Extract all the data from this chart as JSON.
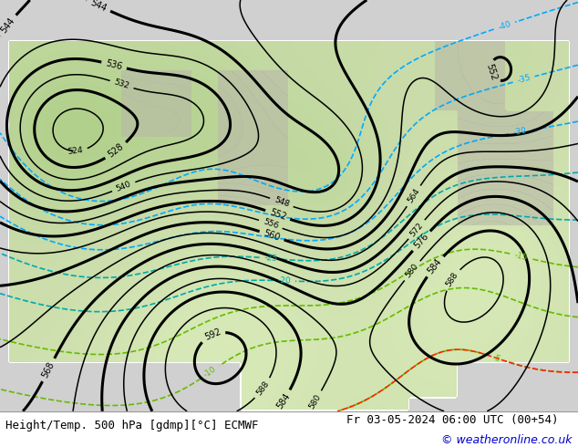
{
  "title_left": "Height/Temp. 500 hPa [gdmp][°C] ECMWF",
  "title_right": "Fr 03-05-2024 06:00 UTC (00+54)",
  "copyright": "© weatheronline.co.uk",
  "fig_width": 6.34,
  "fig_height": 4.9,
  "dpi": 100,
  "ocean_color": "#d0d0d0",
  "land_color": "#c8dba8",
  "bottom_bar_color": "#f0f0f0",
  "title_fontsize": 9.0,
  "copyright_fontsize": 9.0,
  "copyright_color": "#0000cc",
  "geop_contour_color": "#000000",
  "temp_neg_color": "#00aaaa",
  "temp_pos_color": "#ff8800",
  "temp_green_color": "#66bb00",
  "temp_blue_color": "#00aaff",
  "temp_red_color": "#ff2200",
  "geop_linewidth_thick": 2.2,
  "geop_linewidth_thin": 1.1,
  "temp_linewidth": 1.2,
  "label_fontsize": 7.0
}
